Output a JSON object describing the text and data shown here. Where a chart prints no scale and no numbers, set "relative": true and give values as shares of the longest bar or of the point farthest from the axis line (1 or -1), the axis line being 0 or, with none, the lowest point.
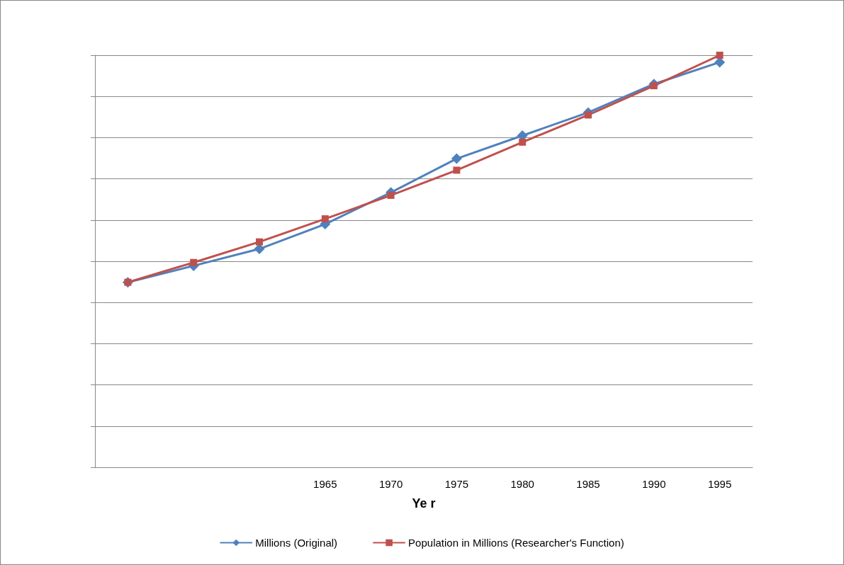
{
  "chart_data": {
    "type": "line",
    "xlabel": "Ye r",
    "relative": true,
    "grid": "y",
    "legend": "bottom",
    "categories": [
      null,
      null,
      null,
      "1965",
      "1970",
      "1975",
      "1980",
      "1985",
      "1990",
      "1995"
    ],
    "series": [
      {
        "name": "Millions (Original)",
        "color": "#4f81bd",
        "marker": "diamond",
        "values": [
          0.449,
          0.489,
          0.53,
          0.59,
          0.667,
          0.749,
          0.805,
          0.861,
          0.93,
          0.983
        ]
      },
      {
        "name": "Population in Millions (Researcher's Function)",
        "color": "#c0504d",
        "marker": "square",
        "values": [
          0.449,
          0.497,
          0.547,
          0.603,
          0.66,
          0.721,
          0.789,
          0.855,
          0.926,
          1
        ]
      }
    ]
  }
}
